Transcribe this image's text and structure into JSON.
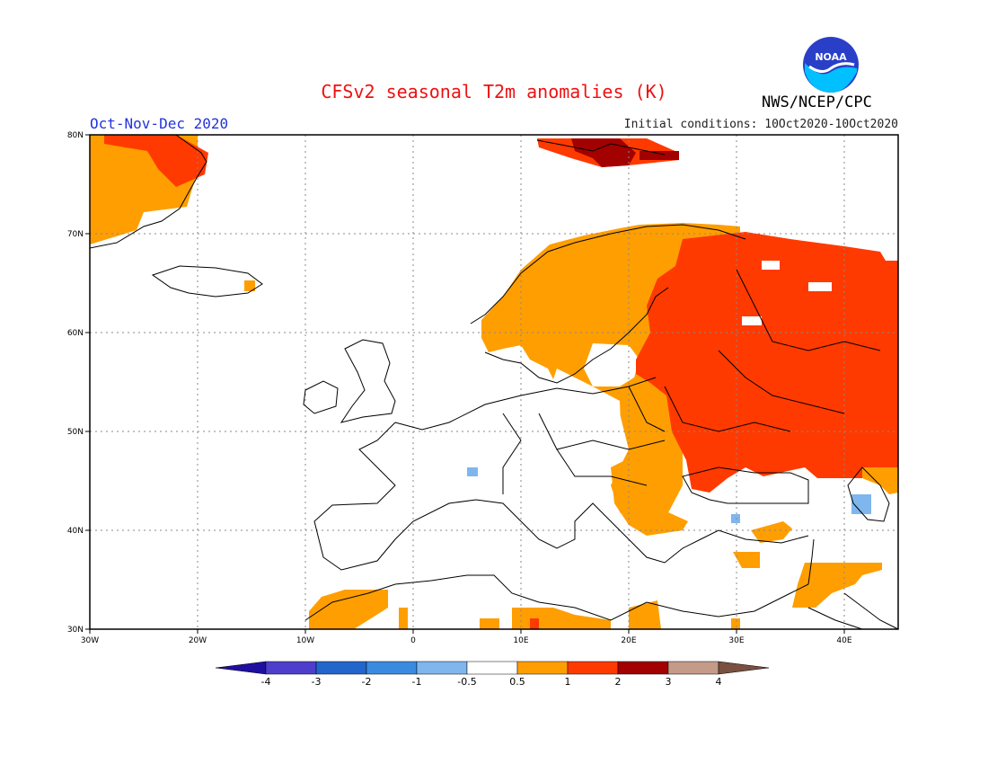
{
  "title": "CFSv2 seasonal T2m anomalies (K)",
  "period": "Oct-Nov-Dec 2020",
  "init_conditions": "Initial conditions: 10Oct2020-10Oct2020",
  "agency": "NWS/NCEP/CPC",
  "logo_text": "NOAA",
  "map": {
    "lon_ticks": [
      "30W",
      "20W",
      "10W",
      "0",
      "10E",
      "20E",
      "30E",
      "40E"
    ],
    "lat_ticks": [
      "80N",
      "70N",
      "60N",
      "50N",
      "40N",
      "30N"
    ]
  },
  "colorbar": {
    "labels": [
      "-4",
      "-3",
      "-2",
      "-1",
      "-0.5",
      "0.5",
      "1",
      "2",
      "3",
      "4"
    ],
    "colors": [
      "#1f0fa0",
      "#4d3fcc",
      "#2266cc",
      "#3a8be0",
      "#7fb6ee",
      "#ffffff",
      "#ff9e00",
      "#ff3a00",
      "#a30000",
      "#c49a88",
      "#7a5040"
    ]
  },
  "colors": {
    "warm1": "#ff9e00",
    "warm2": "#ff3a00",
    "warm3": "#a30000",
    "cool1": "#7fb6ee",
    "coast": "#000000"
  }
}
